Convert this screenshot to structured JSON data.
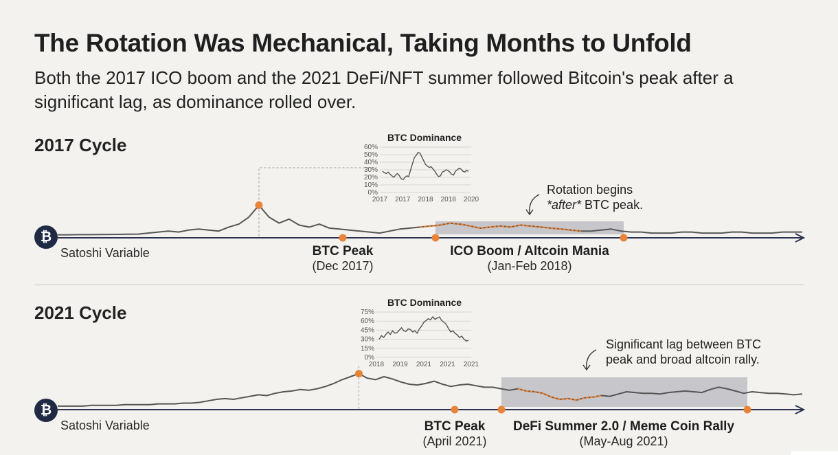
{
  "title": "The Rotation Was Mechanical, Taking Months to Unfold",
  "subtitle": "Both the 2017 ICO boom and the 2021 DeFi/NFT summer followed Bitcoin's peak after a significant lag, as dominance rolled over.",
  "colors": {
    "accent": "#e8833a",
    "line": "#555555",
    "shade": "#bebec3",
    "badge": "#1f2a44"
  },
  "chart_data": [
    {
      "type": "line",
      "heading": "2017 Cycle",
      "axis_label": "Satoshi Variable",
      "icon": "bitcoin-icon",
      "peak": {
        "label": "BTC Peak",
        "date": "(Dec 2017)"
      },
      "rotation": {
        "label": "ICO Boom / Altcoin Mania",
        "date": "(Jan-Feb 2018)"
      },
      "annotation": {
        "line1": "Rotation begins",
        "line2_em": "*after*",
        "line2_rest": " BTC peak."
      },
      "series": [
        0.3,
        0.3,
        0.4,
        0.4,
        0.5,
        0.6,
        0.7,
        0.8,
        1,
        2,
        3,
        4,
        3,
        5,
        6,
        5,
        4,
        8,
        11,
        18,
        30,
        18,
        12,
        16,
        10,
        8,
        11,
        7,
        6,
        5,
        4,
        3,
        2,
        4,
        6,
        7,
        8,
        9,
        10,
        12,
        11,
        9,
        7,
        8,
        9,
        8,
        10,
        9,
        8,
        7,
        6,
        5,
        4,
        4,
        5,
        6,
        4,
        3,
        3,
        2,
        2,
        2,
        3,
        3,
        2,
        2,
        2,
        3,
        3,
        2,
        2,
        2,
        3,
        3,
        3
      ],
      "highlight_series_range": [
        36,
        52
      ],
      "inset": {
        "title": "BTC Dominance",
        "y_ticks": [
          "60%",
          "50%",
          "40%",
          "30%",
          "20%",
          "10%",
          "0%"
        ],
        "x_ticks": [
          "2017",
          "2017",
          "2018",
          "2018",
          "2020"
        ],
        "y_range": [
          0,
          60
        ],
        "values": [
          28,
          26,
          25,
          27,
          24,
          22,
          20,
          23,
          25,
          22,
          18,
          17,
          20,
          22,
          21,
          30,
          38,
          46,
          49,
          53,
          52,
          47,
          42,
          37,
          35,
          33,
          34,
          31,
          28,
          24,
          21,
          22,
          27,
          28,
          30,
          29,
          27,
          24,
          23,
          28,
          30,
          32,
          31,
          28,
          27,
          29,
          28
        ]
      }
    },
    {
      "type": "line",
      "heading": "2021 Cycle",
      "axis_label": "Satoshi Variable",
      "icon": "bitcoin-icon",
      "peak": {
        "label": "BTC Peak",
        "date": "(April 2021)"
      },
      "rotation": {
        "label": "DeFi Summer 2.0 / Meme Coin Rally",
        "date": "(May-Aug 2021)"
      },
      "annotation": {
        "line1": "Significant lag between BTC",
        "line2_em": "",
        "line2_rest": "peak and broad altcoin rally."
      },
      "series": [
        1,
        1,
        1,
        1,
        2,
        2,
        2,
        2,
        3,
        3,
        3,
        3,
        4,
        4,
        4,
        5,
        5,
        6,
        8,
        10,
        11,
        10,
        12,
        14,
        16,
        15,
        18,
        20,
        21,
        23,
        22,
        24,
        27,
        31,
        36,
        40,
        44,
        38,
        36,
        40,
        37,
        33,
        30,
        29,
        31,
        34,
        30,
        27,
        29,
        30,
        28,
        26,
        26,
        24,
        22,
        24,
        21,
        20,
        18,
        13,
        10,
        11,
        9,
        12,
        13,
        15,
        14,
        17,
        20,
        19,
        18,
        18,
        17,
        19,
        20,
        21,
        20,
        19,
        23,
        26,
        24,
        21,
        18,
        20,
        19,
        18,
        18,
        17,
        16,
        17
      ],
      "highlight_series_range": [
        55,
        65
      ],
      "inset": {
        "title": "BTC Dominance",
        "y_ticks": [
          "75%",
          "60%",
          "45%",
          "30%",
          "15%",
          "0%"
        ],
        "x_ticks": [
          "2018",
          "2019",
          "2021",
          "2021",
          "2021"
        ],
        "y_range": [
          0,
          75
        ],
        "values": [
          30,
          36,
          33,
          38,
          42,
          38,
          44,
          40,
          41,
          45,
          49,
          44,
          43,
          47,
          46,
          42,
          44,
          40,
          47,
          52,
          58,
          61,
          64,
          62,
          67,
          63,
          65,
          67,
          61,
          58,
          55,
          48,
          42,
          44,
          40,
          37,
          33,
          35,
          30,
          27,
          28
        ]
      }
    }
  ]
}
